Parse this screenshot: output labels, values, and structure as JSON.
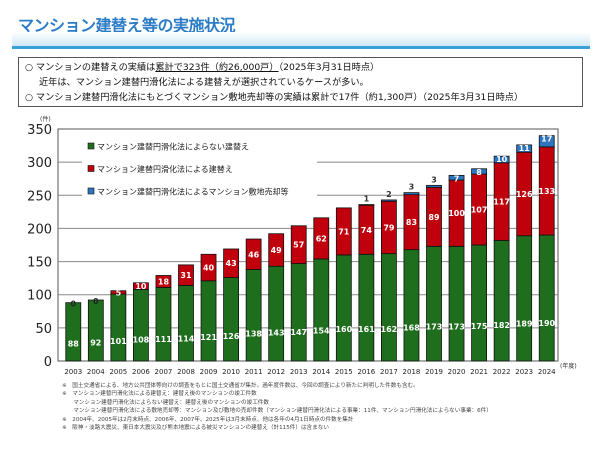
{
  "title": "マンション建替え等の実施状況",
  "summary": {
    "line1_prefix": "○ マンションの建替えの実績は",
    "line1_underlined": "累計で323件（約26,000戸）",
    "line1_suffix": "（2025年3月31日時点）",
    "line2": "近年は、マンション建替円滑化法による建替えが選択されているケースが多い。",
    "line3": "○ マンション建替円滑化法にもとづくマンション敷地売却等の実績は累計で17件（約1,300戸）（2025年3月31日時点）"
  },
  "chart_data": {
    "type": "bar",
    "stacked": true,
    "ylabel": "(件)",
    "xlabel": "(年度)",
    "ylim": [
      0,
      350
    ],
    "yticks": [
      0,
      50,
      100,
      150,
      200,
      250,
      300,
      350
    ],
    "grid": true,
    "legend_position": "top-left",
    "categories": [
      "2003",
      "2004",
      "2005",
      "2006",
      "2007",
      "2008",
      "2009",
      "2010",
      "2011",
      "2012",
      "2013",
      "2014",
      "2015",
      "2016",
      "2017",
      "2018",
      "2019",
      "2020",
      "2021",
      "2022",
      "2023",
      "2024"
    ],
    "series": [
      {
        "name": "マンション建替円滑化法によらない建替え",
        "color": "#1e6e1e",
        "values": [
          88,
          92,
          101,
          108,
          111,
          114,
          121,
          126,
          138,
          143,
          147,
          154,
          160,
          161,
          162,
          168,
          173,
          173,
          175,
          182,
          189,
          190
        ]
      },
      {
        "name": "マンション建替円滑化法による建替え",
        "color": "#c0000c",
        "values": [
          0,
          0,
          5,
          10,
          18,
          31,
          40,
          43,
          46,
          49,
          57,
          62,
          71,
          74,
          79,
          83,
          89,
          100,
          107,
          117,
          126,
          133
        ]
      },
      {
        "name": "マンション建替円滑化法によるマンション敷地売却等",
        "color": "#2e75c0",
        "values": [
          0,
          0,
          0,
          0,
          0,
          0,
          0,
          0,
          0,
          0,
          0,
          0,
          0,
          1,
          2,
          3,
          3,
          7,
          8,
          10,
          11,
          17
        ]
      }
    ]
  },
  "notes": [
    "※　国土交通省による、地方公共団体等向けの調査をもとに国土交通省が集計。過年度件数は、今回の調査により新たに判明した件数も含む。",
    "※　マンション建替円滑化法による建替え：建替え後のマンションの竣工件数",
    "　　マンション建替円滑化法によらない建替え：建替え後のマンションの竣工件数",
    "　　マンション建替円滑化法による敷地売却等：マンション及び敷地の売却件数（マンション建替円滑化法による事業：11件、マンション円滑化法によらない事業：6件）",
    "※　2004年、2005年は2月末時点、2006年、2007年、2025年は3月末時点、他は各年の4月1日時点の件数を集計",
    "※　阪神・淡路大震災、東日本大震災及び熊本地震による被災マンションの建替え（計115件）は含まない"
  ]
}
